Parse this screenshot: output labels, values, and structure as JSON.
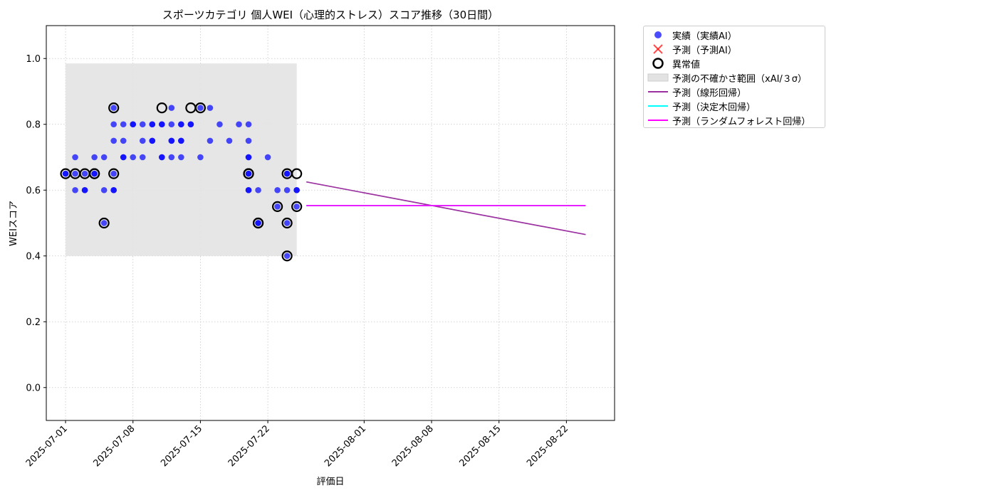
{
  "chart_data": {
    "type": "scatter",
    "title": "スポーツカテゴリ 個人WEI（心理的ストレス）スコア推移（30日間）",
    "xlabel": "評価日",
    "ylabel": "WEIスコア",
    "ylim": [
      -0.1,
      1.1
    ],
    "y_ticks": [
      0.0,
      0.2,
      0.4,
      0.6,
      0.8,
      1.0
    ],
    "y_tick_labels": [
      "0.0",
      "0.2",
      "0.4",
      "0.6",
      "0.8",
      "1.0"
    ],
    "xlim": [
      "2025-06-29",
      "2025-08-27"
    ],
    "x_ticks": [
      "2025-07-01",
      "2025-07-08",
      "2025-07-15",
      "2025-07-22",
      "2025-08-01",
      "2025-08-08",
      "2025-08-15",
      "2025-08-22"
    ],
    "grid": true,
    "legend_position": "outside-top-right",
    "colors": {
      "actual": "#0000ff",
      "predicted": "#ff0000",
      "anomaly": "#000000",
      "uncertainty": "#e3e3e3",
      "linear": "#9b30a0",
      "decision_tree": "#00ffff",
      "random_forest": "#ff00ff"
    },
    "legend": [
      {
        "key": "actual",
        "label": "実績（実績AI）"
      },
      {
        "key": "predicted",
        "label": "予測（予測AI）"
      },
      {
        "key": "anomaly",
        "label": "異常値"
      },
      {
        "key": "uncertainty",
        "label": "予測の不確かさ範囲（xAI/３σ）"
      },
      {
        "key": "linear",
        "label": "予測（線形回帰）"
      },
      {
        "key": "decision_tree",
        "label": "予測（決定木回帰）"
      },
      {
        "key": "random_forest",
        "label": "予測（ランダムフォレスト回帰）"
      }
    ],
    "uncertainty_band": {
      "x_start": "2025-07-01",
      "x_end": "2025-07-25",
      "y_low": 0.4,
      "y_high": 0.985
    },
    "actual_points": [
      {
        "x": "2025-07-01",
        "y": 0.65
      },
      {
        "x": "2025-07-01",
        "y": 0.65
      },
      {
        "x": "2025-07-02",
        "y": 0.6
      },
      {
        "x": "2025-07-02",
        "y": 0.65
      },
      {
        "x": "2025-07-02",
        "y": 0.7
      },
      {
        "x": "2025-07-03",
        "y": 0.6
      },
      {
        "x": "2025-07-03",
        "y": 0.65
      },
      {
        "x": "2025-07-03",
        "y": 0.6
      },
      {
        "x": "2025-07-04",
        "y": 0.65
      },
      {
        "x": "2025-07-04",
        "y": 0.7
      },
      {
        "x": "2025-07-04",
        "y": 0.65
      },
      {
        "x": "2025-07-05",
        "y": 0.7
      },
      {
        "x": "2025-07-05",
        "y": 0.6
      },
      {
        "x": "2025-07-05",
        "y": 0.5
      },
      {
        "x": "2025-07-06",
        "y": 0.6
      },
      {
        "x": "2025-07-06",
        "y": 0.65
      },
      {
        "x": "2025-07-06",
        "y": 0.6
      },
      {
        "x": "2025-07-06",
        "y": 0.75
      },
      {
        "x": "2025-07-06",
        "y": 0.8
      },
      {
        "x": "2025-07-06",
        "y": 0.85
      },
      {
        "x": "2025-07-07",
        "y": 0.8
      },
      {
        "x": "2025-07-07",
        "y": 0.7
      },
      {
        "x": "2025-07-07",
        "y": 0.75
      },
      {
        "x": "2025-07-07",
        "y": 0.7
      },
      {
        "x": "2025-07-08",
        "y": 0.7
      },
      {
        "x": "2025-07-08",
        "y": 0.8
      },
      {
        "x": "2025-07-08",
        "y": 0.8
      },
      {
        "x": "2025-07-09",
        "y": 0.75
      },
      {
        "x": "2025-07-09",
        "y": 0.8
      },
      {
        "x": "2025-07-09",
        "y": 0.7
      },
      {
        "x": "2025-07-10",
        "y": 0.8
      },
      {
        "x": "2025-07-10",
        "y": 0.75
      },
      {
        "x": "2025-07-10",
        "y": 0.75
      },
      {
        "x": "2025-07-10",
        "y": 0.8
      },
      {
        "x": "2025-07-11",
        "y": 0.8
      },
      {
        "x": "2025-07-11",
        "y": 0.8
      },
      {
        "x": "2025-07-11",
        "y": 0.7
      },
      {
        "x": "2025-07-11",
        "y": 0.7
      },
      {
        "x": "2025-07-12",
        "y": 0.75
      },
      {
        "x": "2025-07-12",
        "y": 0.7
      },
      {
        "x": "2025-07-12",
        "y": 0.8
      },
      {
        "x": "2025-07-12",
        "y": 0.75
      },
      {
        "x": "2025-07-12",
        "y": 0.85
      },
      {
        "x": "2025-07-13",
        "y": 0.75
      },
      {
        "x": "2025-07-13",
        "y": 0.75
      },
      {
        "x": "2025-07-13",
        "y": 0.8
      },
      {
        "x": "2025-07-13",
        "y": 0.8
      },
      {
        "x": "2025-07-13",
        "y": 0.7
      },
      {
        "x": "2025-07-14",
        "y": 0.8
      },
      {
        "x": "2025-07-14",
        "y": 0.8
      },
      {
        "x": "2025-07-15",
        "y": 0.85
      },
      {
        "x": "2025-07-15",
        "y": 0.7
      },
      {
        "x": "2025-07-16",
        "y": 0.85
      },
      {
        "x": "2025-07-16",
        "y": 0.75
      },
      {
        "x": "2025-07-17",
        "y": 0.8
      },
      {
        "x": "2025-07-18",
        "y": 0.75
      },
      {
        "x": "2025-07-19",
        "y": 0.8
      },
      {
        "x": "2025-07-20",
        "y": 0.7
      },
      {
        "x": "2025-07-20",
        "y": 0.75
      },
      {
        "x": "2025-07-20",
        "y": 0.65
      },
      {
        "x": "2025-07-20",
        "y": 0.8
      },
      {
        "x": "2025-07-20",
        "y": 0.7
      },
      {
        "x": "2025-07-20",
        "y": 0.6
      },
      {
        "x": "2025-07-20",
        "y": 0.6
      },
      {
        "x": "2025-07-20",
        "y": 0.65
      },
      {
        "x": "2025-07-21",
        "y": 0.5
      },
      {
        "x": "2025-07-21",
        "y": 0.5
      },
      {
        "x": "2025-07-21",
        "y": 0.6
      },
      {
        "x": "2025-07-22",
        "y": 0.7
      },
      {
        "x": "2025-07-23",
        "y": 0.55
      },
      {
        "x": "2025-07-23",
        "y": 0.6
      },
      {
        "x": "2025-07-24",
        "y": 0.65
      },
      {
        "x": "2025-07-24",
        "y": 0.5
      },
      {
        "x": "2025-07-24",
        "y": 0.4
      },
      {
        "x": "2025-07-24",
        "y": 0.6
      },
      {
        "x": "2025-07-24",
        "y": 0.65
      },
      {
        "x": "2025-07-25",
        "y": 0.6
      },
      {
        "x": "2025-07-25",
        "y": 0.6
      },
      {
        "x": "2025-07-25",
        "y": 0.55
      }
    ],
    "anomaly_points": [
      {
        "x": "2025-07-01",
        "y": 0.65
      },
      {
        "x": "2025-07-02",
        "y": 0.65
      },
      {
        "x": "2025-07-03",
        "y": 0.65
      },
      {
        "x": "2025-07-04",
        "y": 0.65
      },
      {
        "x": "2025-07-04",
        "y": 0.65
      },
      {
        "x": "2025-07-05",
        "y": 0.5
      },
      {
        "x": "2025-07-06",
        "y": 0.65
      },
      {
        "x": "2025-07-06",
        "y": 0.85
      },
      {
        "x": "2025-07-11",
        "y": 0.85
      },
      {
        "x": "2025-07-14",
        "y": 0.85
      },
      {
        "x": "2025-07-15",
        "y": 0.85
      },
      {
        "x": "2025-07-20",
        "y": 0.65
      },
      {
        "x": "2025-07-20",
        "y": 0.65
      },
      {
        "x": "2025-07-21",
        "y": 0.5
      },
      {
        "x": "2025-07-21",
        "y": 0.5
      },
      {
        "x": "2025-07-23",
        "y": 0.55
      },
      {
        "x": "2025-07-24",
        "y": 0.5
      },
      {
        "x": "2025-07-24",
        "y": 0.4
      },
      {
        "x": "2025-07-24",
        "y": 0.65
      },
      {
        "x": "2025-07-25",
        "y": 0.65
      },
      {
        "x": "2025-07-25",
        "y": 0.55
      }
    ],
    "predicted_points": [],
    "series": [
      {
        "name": "予測（線形回帰）",
        "key": "linear",
        "x": [
          "2025-07-26",
          "2025-08-24"
        ],
        "values": [
          0.625,
          0.465
        ]
      },
      {
        "name": "予測（決定木回帰）",
        "key": "decision_tree",
        "x": [
          "2025-07-26",
          "2025-08-24"
        ],
        "values": [
          0.553,
          0.553
        ]
      },
      {
        "name": "予測（ランダムフォレスト回帰）",
        "key": "random_forest",
        "x": [
          "2025-07-26",
          "2025-08-24"
        ],
        "values": [
          0.553,
          0.553
        ]
      }
    ]
  }
}
